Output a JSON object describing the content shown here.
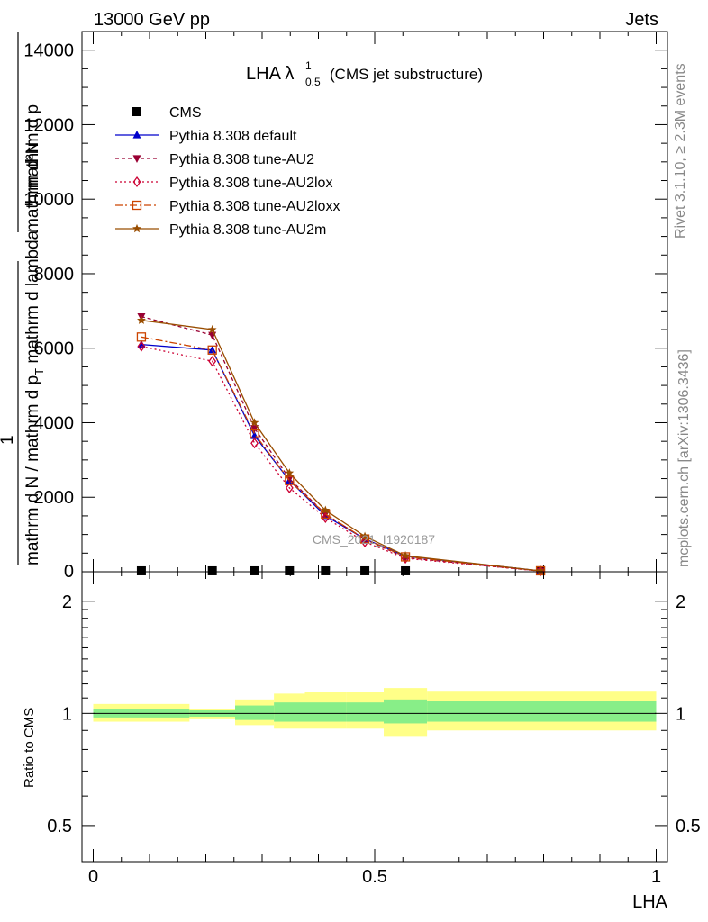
{
  "header": {
    "left": "13000 GeV pp",
    "right": "Jets"
  },
  "side_labels": {
    "rivet": "Rivet 3.1.10, ≥ 2.3M events",
    "mcplots": "mcplots.cern.ch [arXiv:1306.3436]"
  },
  "watermark": "CMS_2021_I1920187",
  "title": {
    "main": "LHA λ",
    "sup": "1",
    "sub": "0.5",
    "tail": "(CMS jet substructure)"
  },
  "ylabel_top": {
    "line1": "mathrm d²N",
    "line2": "1",
    "line3": "mathrm d N / mathrm d p",
    "line3_sub": "T",
    "line3b": " mathrm d p",
    "line3b_sub": "T",
    "line3c": " mathrm d lambda",
    "frac_top": "mathrm d p",
    "frac_top_sub": "T",
    "frac_top_tail": " mathrm d lambda"
  },
  "ylabel_bottom": "Ratio to CMS",
  "xlabel": "LHA",
  "chart_data": [
    {
      "type": "line",
      "panel": "main",
      "xlim": [
        -0.02,
        1.02
      ],
      "ylim": [
        0,
        14500
      ],
      "yticks_major": [
        2000,
        4000,
        6000,
        8000,
        10000,
        12000,
        14000
      ],
      "ytick_labels": [
        "2000",
        "4000",
        "6000",
        "8000",
        "10000",
        "12000",
        "14000"
      ],
      "zero_label": "0",
      "x": [
        0.0855,
        0.2115,
        0.2865,
        0.3485,
        0.4125,
        0.4825,
        0.5545,
        0.7945
      ],
      "series": [
        {
          "name": "CMS",
          "marker": "square",
          "color": "#000000",
          "dash": "none",
          "values": [
            25,
            25,
            25,
            25,
            25,
            25,
            25,
            25
          ]
        },
        {
          "name": "Pythia 8.308 default",
          "marker": "triangle-up",
          "color": "#0000cc",
          "dash": "none",
          "values": [
            6100,
            5950,
            3650,
            2450,
            1500,
            880,
            420,
            25
          ]
        },
        {
          "name": "Pythia 8.308 tune-AU2",
          "marker": "triangle-down",
          "color": "#990033",
          "dash": "4,3",
          "values": [
            6850,
            6350,
            3850,
            2500,
            1550,
            870,
            380,
            20
          ]
        },
        {
          "name": "Pythia 8.308 tune-AU2lox",
          "marker": "diamond-open",
          "color": "#cc0033",
          "dash": "2,3",
          "values": [
            6050,
            5650,
            3450,
            2250,
            1450,
            800,
            360,
            20
          ]
        },
        {
          "name": "Pythia 8.308 tune-AU2loxx",
          "marker": "square-open",
          "color": "#cc4400",
          "dash": "8,3,2,3",
          "values": [
            6300,
            5950,
            3700,
            2450,
            1550,
            880,
            400,
            25
          ]
        },
        {
          "name": "Pythia 8.308 tune-AU2m",
          "marker": "star",
          "color": "#994d00",
          "dash": "none",
          "values": [
            6750,
            6500,
            4000,
            2650,
            1650,
            950,
            430,
            25
          ]
        }
      ]
    },
    {
      "type": "area",
      "panel": "ratio",
      "xlim": [
        -0.02,
        1.02
      ],
      "ylim": [
        0.4,
        2.4
      ],
      "log_scale": true,
      "ytick_labels": [
        "0.5",
        "1",
        "2"
      ],
      "xtick_labels": [
        "0",
        "0.5",
        "1"
      ],
      "bins": [
        0,
        0.171,
        0.252,
        0.321,
        0.376,
        0.449,
        0.516,
        0.593,
        1.0
      ],
      "yellow_low": [
        0.95,
        0.97,
        0.93,
        0.91,
        0.91,
        0.91,
        0.87,
        0.9
      ],
      "yellow_high": [
        1.06,
        1.03,
        1.09,
        1.13,
        1.14,
        1.14,
        1.17,
        1.15
      ],
      "green_low": [
        0.975,
        0.98,
        0.96,
        0.95,
        0.95,
        0.95,
        0.94,
        0.95
      ],
      "green_high": [
        1.03,
        1.02,
        1.05,
        1.07,
        1.07,
        1.07,
        1.09,
        1.08
      ],
      "reference": 1
    }
  ]
}
